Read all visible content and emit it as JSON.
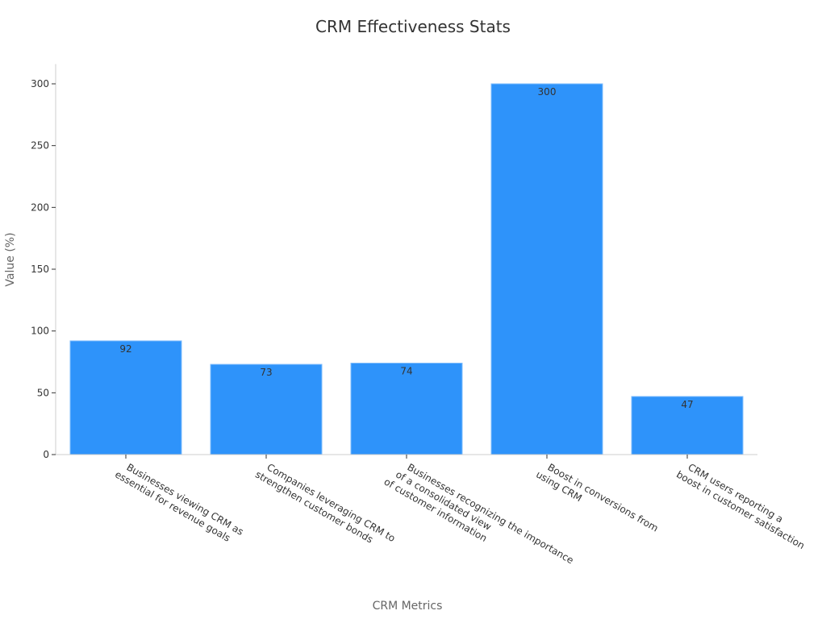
{
  "chart_data": {
    "type": "bar",
    "title": "CRM Effectiveness Stats",
    "xlabel": "CRM Metrics",
    "ylabel": "Value (%)",
    "ylim": [
      0,
      316
    ],
    "yticks": [
      0,
      50,
      100,
      150,
      200,
      250,
      300
    ],
    "categories": [
      [
        "Businesses viewing CRM as",
        "essential for revenue goals"
      ],
      [
        "Companies leveraging CRM to",
        "strengthen customer bonds"
      ],
      [
        "Businesses recognizing the importance",
        "of a consolidated view",
        "of customer information"
      ],
      [
        "Boost in conversions from",
        "using CRM"
      ],
      [
        "CRM users reporting a",
        "boost in customer satisfaction"
      ]
    ],
    "values": [
      92,
      73,
      74,
      300,
      47
    ],
    "bar_color": "#2e93fa",
    "grid": false,
    "legend": "none"
  }
}
